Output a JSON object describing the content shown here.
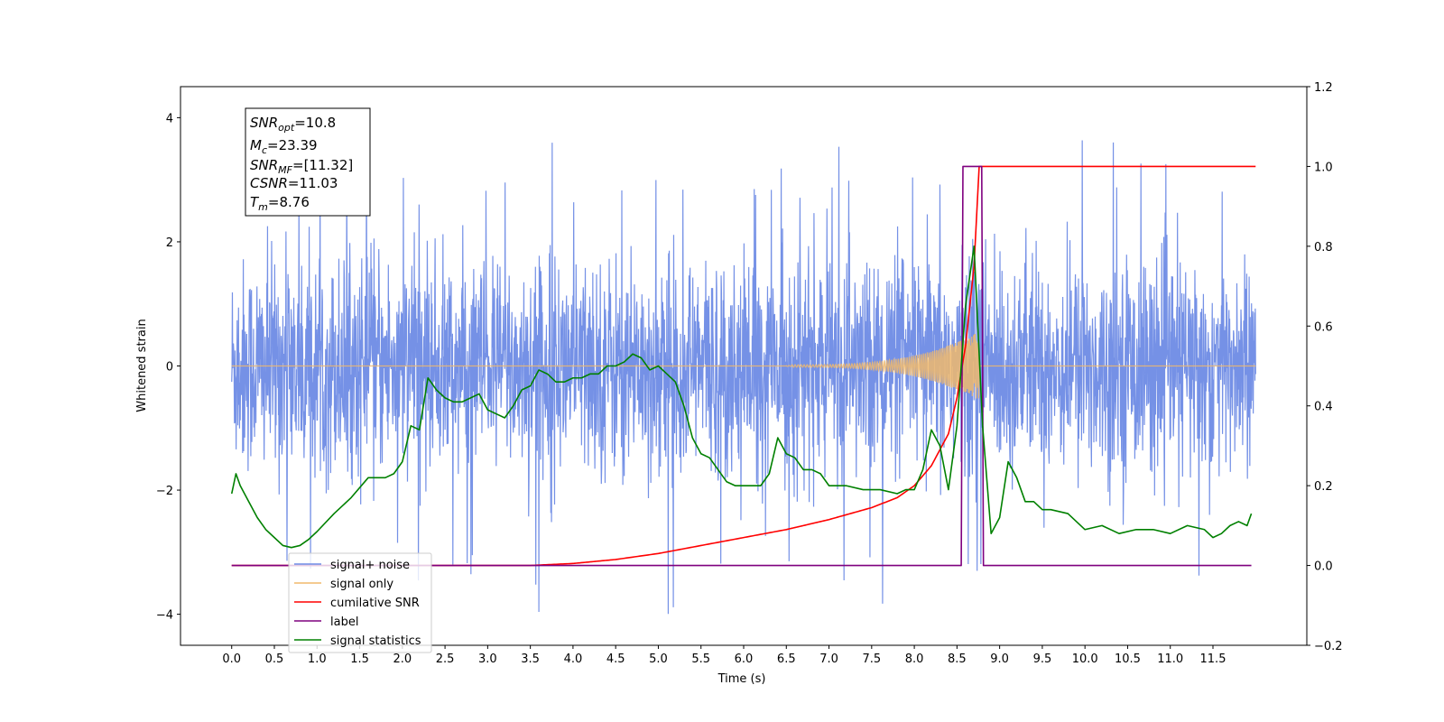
{
  "chart_data": {
    "type": "line",
    "xlabel": "Time (s)",
    "ylabel": "Whitened strain",
    "ylabel_right": "",
    "xlim": [
      -0.6,
      12.6
    ],
    "ylim": [
      -4.5,
      4.5
    ],
    "ylim_right": [
      -0.2,
      1.2
    ],
    "x_ticks": [
      0.0,
      0.5,
      1.0,
      1.5,
      2.0,
      2.5,
      3.0,
      3.5,
      4.0,
      4.5,
      5.0,
      5.5,
      6.0,
      6.5,
      7.0,
      7.5,
      8.0,
      8.5,
      9.0,
      9.5,
      10.0,
      10.5,
      11.0,
      11.5
    ],
    "x_tick_labels": [
      "0.0",
      "0.5",
      "1.0",
      "1.5",
      "2.0",
      "2.5",
      "3.0",
      "3.5",
      "4.0",
      "4.5",
      "5.0",
      "5.5",
      "6.0",
      "6.5",
      "7.0",
      "7.5",
      "8.0",
      "8.5",
      "9.0",
      "9.5",
      "10.0",
      "10.5",
      "11.0",
      "11.5"
    ],
    "y_ticks": [
      -4,
      -2,
      0,
      2,
      4
    ],
    "y_tick_labels": [
      "−4",
      "−2",
      "0",
      "2",
      "4"
    ],
    "y_ticks_right": [
      -0.2,
      0.0,
      0.2,
      0.4,
      0.6,
      0.8,
      1.0,
      1.2
    ],
    "y_tick_labels_right": [
      "−0.2",
      "0.0",
      "0.2",
      "0.4",
      "0.6",
      "0.8",
      "1.0",
      "1.2"
    ],
    "annotation": {
      "snr_opt": {
        "sym": "SNR",
        "sub": "opt",
        "value": "=10.8"
      },
      "mc": {
        "sym": "M",
        "sub": "c",
        "value": "=23.39"
      },
      "snr_mf": {
        "sym": "SNR",
        "sub": "MF",
        "value": "=[11.32]"
      },
      "csnr": {
        "sym": "CSNR",
        "sub": "",
        "value": "=11.03"
      },
      "tm": {
        "sym": "T",
        "sub": "m",
        "value": "=8.76"
      }
    },
    "legend_position": "lower-left",
    "series": [
      {
        "name": "signal+ noise",
        "color": "#6e8be5",
        "axis": "left",
        "description_range": [
          -2.5,
          2.5
        ]
      },
      {
        "name": "signal only",
        "color": "#f0b86c",
        "axis": "left"
      },
      {
        "name": "cumilative SNR",
        "color": "#ff0000",
        "axis": "right",
        "x": [
          0.0,
          3.0,
          3.5,
          4.0,
          4.5,
          5.0,
          5.5,
          6.0,
          6.5,
          7.0,
          7.5,
          7.8,
          8.0,
          8.2,
          8.4,
          8.5,
          8.6,
          8.65,
          8.7,
          8.76,
          12.0
        ],
        "y": [
          0.0,
          0.0,
          0.0,
          0.005,
          0.015,
          0.03,
          0.05,
          0.07,
          0.09,
          0.115,
          0.145,
          0.17,
          0.2,
          0.25,
          0.33,
          0.42,
          0.55,
          0.65,
          0.75,
          1.0,
          1.0
        ]
      },
      {
        "name": "label",
        "color": "#7f007f",
        "axis": "right",
        "x": [
          0.0,
          8.55,
          8.57,
          8.79,
          8.81,
          11.95
        ],
        "y": [
          0.0,
          0.0,
          1.0,
          1.0,
          0.0,
          0.0
        ]
      },
      {
        "name": "signal statistics",
        "color": "#008000",
        "axis": "right",
        "x": [
          0.0,
          0.05,
          0.1,
          0.2,
          0.3,
          0.4,
          0.5,
          0.6,
          0.7,
          0.8,
          0.9,
          1.0,
          1.2,
          1.4,
          1.6,
          1.8,
          1.9,
          2.0,
          2.1,
          2.2,
          2.3,
          2.4,
          2.5,
          2.6,
          2.7,
          2.8,
          2.9,
          3.0,
          3.1,
          3.2,
          3.3,
          3.4,
          3.5,
          3.6,
          3.7,
          3.8,
          3.9,
          4.0,
          4.1,
          4.2,
          4.3,
          4.4,
          4.5,
          4.6,
          4.7,
          4.8,
          4.9,
          5.0,
          5.1,
          5.2,
          5.3,
          5.4,
          5.5,
          5.6,
          5.7,
          5.8,
          5.9,
          6.0,
          6.1,
          6.2,
          6.3,
          6.4,
          6.5,
          6.6,
          6.7,
          6.8,
          6.9,
          7.0,
          7.2,
          7.4,
          7.6,
          7.8,
          7.9,
          8.0,
          8.1,
          8.2,
          8.3,
          8.4,
          8.5,
          8.6,
          8.7,
          8.8,
          8.9,
          9.0,
          9.1,
          9.2,
          9.3,
          9.4,
          9.5,
          9.6,
          9.8,
          10.0,
          10.2,
          10.4,
          10.6,
          10.8,
          11.0,
          11.2,
          11.4,
          11.5,
          11.6,
          11.7,
          11.8,
          11.9,
          11.95
        ],
        "y": [
          0.18,
          0.23,
          0.2,
          0.16,
          0.12,
          0.09,
          0.07,
          0.05,
          0.045,
          0.05,
          0.065,
          0.085,
          0.13,
          0.17,
          0.22,
          0.22,
          0.23,
          0.26,
          0.35,
          0.34,
          0.47,
          0.44,
          0.42,
          0.41,
          0.41,
          0.42,
          0.43,
          0.39,
          0.38,
          0.37,
          0.4,
          0.44,
          0.45,
          0.49,
          0.48,
          0.46,
          0.46,
          0.47,
          0.47,
          0.48,
          0.48,
          0.5,
          0.5,
          0.51,
          0.53,
          0.52,
          0.49,
          0.5,
          0.48,
          0.46,
          0.4,
          0.32,
          0.28,
          0.27,
          0.24,
          0.21,
          0.2,
          0.2,
          0.2,
          0.2,
          0.23,
          0.32,
          0.28,
          0.27,
          0.24,
          0.24,
          0.23,
          0.2,
          0.2,
          0.19,
          0.19,
          0.18,
          0.19,
          0.19,
          0.24,
          0.34,
          0.3,
          0.19,
          0.35,
          0.65,
          0.8,
          0.35,
          0.08,
          0.12,
          0.26,
          0.22,
          0.16,
          0.16,
          0.14,
          0.14,
          0.13,
          0.09,
          0.1,
          0.08,
          0.09,
          0.09,
          0.08,
          0.1,
          0.09,
          0.07,
          0.08,
          0.1,
          0.11,
          0.1,
          0.13
        ]
      }
    ]
  }
}
